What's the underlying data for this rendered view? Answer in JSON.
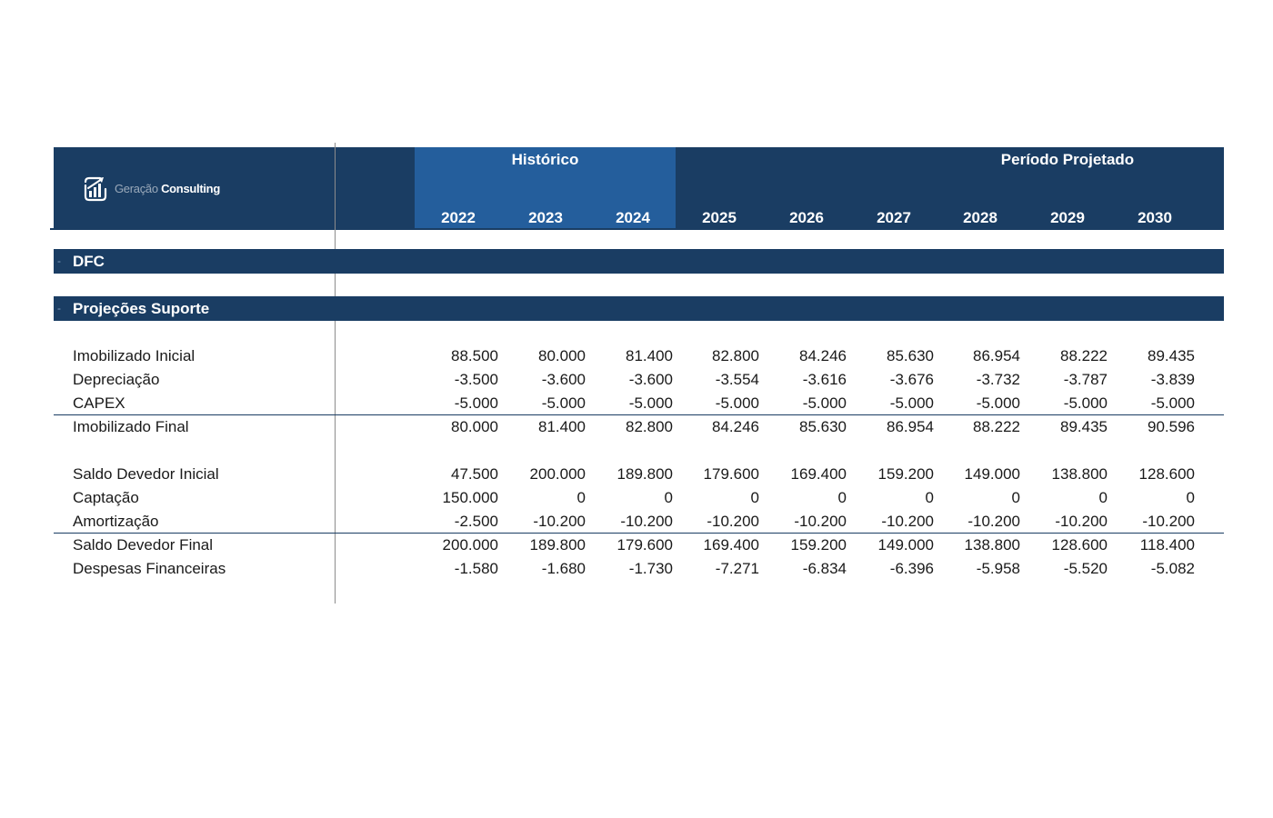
{
  "brand": {
    "logo_word1": "Geração",
    "logo_word2": "Consulting"
  },
  "header": {
    "historico_label": "Histórico",
    "projetado_label": "Período Projetado",
    "years": [
      "2022",
      "2023",
      "2024",
      "2025",
      "2026",
      "2027",
      "2028",
      "2029",
      "2030"
    ]
  },
  "sections": {
    "dfc": "DFC",
    "projecoes": "Projeções Suporte"
  },
  "rows": [
    {
      "label": "Imobilizado Inicial",
      "values": [
        "88.500",
        "80.000",
        "81.400",
        "82.800",
        "84.246",
        "85.630",
        "86.954",
        "88.222",
        "89.435"
      ]
    },
    {
      "label": "Depreciação",
      "values": [
        "-3.500",
        "-3.600",
        "-3.600",
        "-3.554",
        "-3.616",
        "-3.676",
        "-3.732",
        "-3.787",
        "-3.839"
      ]
    },
    {
      "label": "CAPEX",
      "values": [
        "-5.000",
        "-5.000",
        "-5.000",
        "-5.000",
        "-5.000",
        "-5.000",
        "-5.000",
        "-5.000",
        "-5.000"
      ]
    },
    {
      "label": "Imobilizado Final",
      "values": [
        "80.000",
        "81.400",
        "82.800",
        "84.246",
        "85.630",
        "86.954",
        "88.222",
        "89.435",
        "90.596"
      ]
    },
    {
      "label": "Saldo Devedor Inicial",
      "values": [
        "47.500",
        "200.000",
        "189.800",
        "179.600",
        "169.400",
        "159.200",
        "149.000",
        "138.800",
        "128.600"
      ]
    },
    {
      "label": "Captação",
      "values": [
        "150.000",
        "0",
        "0",
        "0",
        "0",
        "0",
        "0",
        "0",
        "0"
      ]
    },
    {
      "label": "Amortização",
      "values": [
        "-2.500",
        "-10.200",
        "-10.200",
        "-10.200",
        "-10.200",
        "-10.200",
        "-10.200",
        "-10.200",
        "-10.200"
      ]
    },
    {
      "label": "Saldo Devedor Final",
      "values": [
        "200.000",
        "189.800",
        "179.600",
        "169.400",
        "159.200",
        "149.000",
        "138.800",
        "128.600",
        "118.400"
      ]
    },
    {
      "label": "Despesas Financeiras",
      "values": [
        "-1.580",
        "-1.680",
        "-1.730",
        "-7.271",
        "-6.834",
        "-6.396",
        "-5.958",
        "-5.520",
        "-5.082"
      ]
    }
  ]
}
